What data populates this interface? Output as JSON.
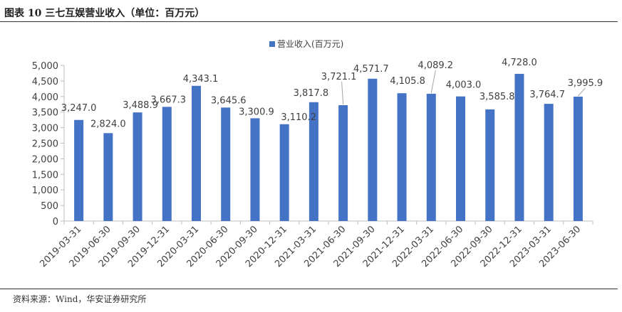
{
  "figure": {
    "title": "图表 10 三七互娱营业收入（单位：百万元）",
    "source": "资料来源：Wind，华安证券研究所"
  },
  "chart_data": {
    "type": "bar",
    "categories": [
      "2019-03-31",
      "2019-06-30",
      "2019-09-30",
      "2019-12-31",
      "2020-03-31",
      "2020-06-30",
      "2020-09-30",
      "2020-12-31",
      "2021-03-31",
      "2021-06-30",
      "2021-09-30",
      "2021-12-31",
      "2022-03-31",
      "2022-06-30",
      "2022-09-30",
      "2022-12-31",
      "2023-03-31",
      "2023-06-30"
    ],
    "series": [
      {
        "name": "营业收入(百万元)",
        "values": [
          3247.0,
          2824.0,
          3488.9,
          3667.3,
          4343.1,
          3645.6,
          3300.9,
          3110.2,
          3817.8,
          3721.1,
          4571.7,
          4105.8,
          4089.2,
          4003.0,
          3585.8,
          4728.0,
          3764.7,
          3995.9
        ],
        "labels": [
          "3,247.0",
          "2,824.0",
          "3,488.9",
          "3,667.3",
          "4,343.1",
          "3,645.6",
          "3,300.9",
          "3,110.2",
          "3,817.8",
          "3,721.1",
          "4,571.7",
          "4,105.8",
          "4,089.2",
          "4,003.0",
          "3,585.8",
          "4,728.0",
          "3,764.7",
          "3,995.9"
        ]
      }
    ],
    "ylim": [
      0,
      5000
    ],
    "yticks": [
      0,
      500,
      1000,
      1500,
      2000,
      2500,
      3000,
      3500,
      4000,
      4500,
      5000
    ],
    "ytick_labels": [
      "0",
      "500",
      "1,000",
      "1,500",
      "2,000",
      "2,500",
      "3,000",
      "3,500",
      "4,000",
      "4,500",
      "5,000"
    ],
    "legend_position": "top-center",
    "grid": false,
    "bar_color": "#4472C4"
  }
}
